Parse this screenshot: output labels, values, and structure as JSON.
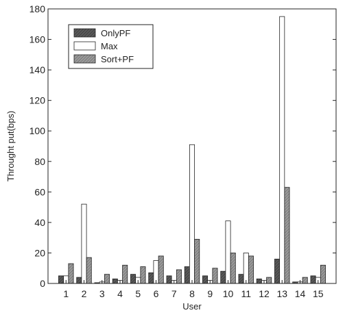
{
  "chart_data": {
    "type": "bar",
    "xlabel": "User",
    "ylabel": "Throught put(bps)",
    "ylim": [
      0,
      180
    ],
    "yticks": [
      0,
      20,
      40,
      60,
      80,
      100,
      120,
      140,
      160,
      180
    ],
    "categories": [
      "1",
      "2",
      "3",
      "4",
      "5",
      "6",
      "7",
      "8",
      "9",
      "10",
      "11",
      "12",
      "13",
      "14",
      "15"
    ],
    "legend_position": "top-left",
    "grid": false,
    "series": [
      {
        "name": "OnlyPF",
        "color": "#555555",
        "pattern": "dark-hatch",
        "values": [
          5,
          4,
          0.5,
          3,
          6,
          7,
          5,
          11,
          5,
          8,
          6,
          3,
          16,
          1,
          5
        ]
      },
      {
        "name": "Max",
        "color": "#ffffff",
        "pattern": "none",
        "values": [
          5,
          52,
          1,
          2,
          4,
          15,
          2,
          91,
          2,
          41,
          20,
          2,
          175,
          1,
          4
        ]
      },
      {
        "name": "Sort+PF",
        "color": "#8a8a8a",
        "pattern": "light-hatch",
        "values": [
          13,
          17,
          6,
          12,
          11,
          18,
          9,
          29,
          10,
          20,
          18,
          4,
          63,
          4,
          12
        ]
      }
    ]
  }
}
